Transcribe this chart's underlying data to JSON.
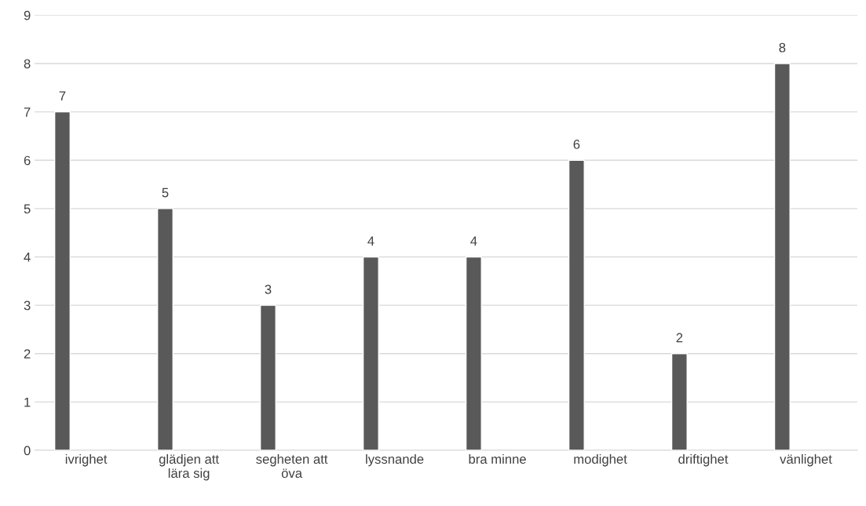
{
  "chart_data": {
    "type": "bar",
    "categories": [
      "ivrighet",
      "glädjen att lära sig",
      "segheten att öva",
      "lyssnande",
      "bra minne",
      "modighet",
      "driftighet",
      "vänlighet"
    ],
    "values": [
      7,
      5,
      3,
      4,
      4,
      6,
      2,
      8
    ],
    "color": "#595959",
    "ylim": [
      0,
      9
    ],
    "yticks": [
      0,
      1,
      2,
      3,
      4,
      5,
      6,
      7,
      8,
      9
    ],
    "grid": "y",
    "data_labels": true
  }
}
